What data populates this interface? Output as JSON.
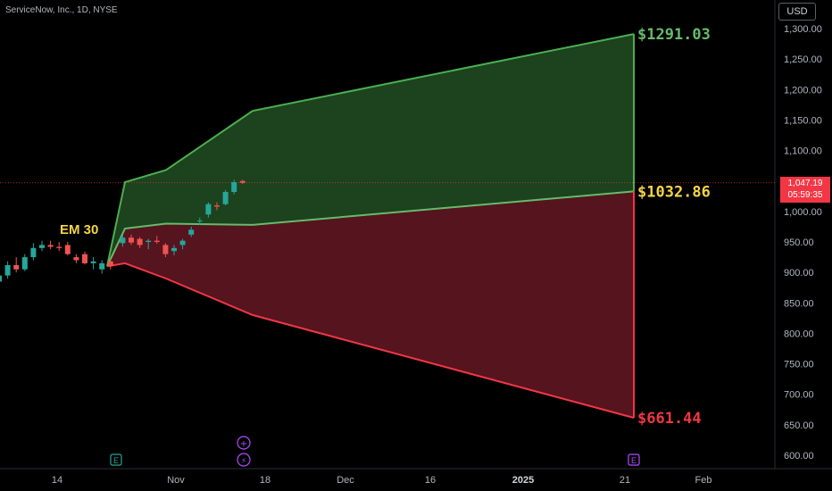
{
  "header": {
    "symbol_title": "ServiceNow, Inc., 1D, NYSE",
    "currency": "USD"
  },
  "price_tag": {
    "price": "1,047.19",
    "countdown": "05:59:35"
  },
  "colors": {
    "up": "#26a69a",
    "down": "#ef5350",
    "upper_fill": "#1e4620",
    "lower_fill": "#5a1520",
    "upper_line": "#4caf50",
    "lower_line": "#f23645",
    "mid_line": "#66bb6a",
    "upper_label": "#66bb6a",
    "mid_label": "#f5d547",
    "lower_label": "#f23645"
  },
  "chart_data": {
    "type": "candlestick",
    "title": "ServiceNow, Inc., 1D, NYSE",
    "ylim": [
      590,
      1320
    ],
    "y_ticks": [
      "1,300.00",
      "1,250.00",
      "1,200.00",
      "1,150.00",
      "1,100.00",
      "1,050.00",
      "1,000.00",
      "950.00",
      "900.00",
      "850.00",
      "800.00",
      "750.00",
      "700.00",
      "650.00",
      "600.00"
    ],
    "x_ticks": [
      "14",
      "Nov",
      "18",
      "Dec",
      "16",
      "2025",
      "21",
      "Feb"
    ],
    "annotation": "EM 30",
    "levels": {
      "upper": "$1291.03",
      "mid": "$1032.86",
      "lower": "$661.44"
    },
    "candles": [
      {
        "o": 885,
        "h": 900,
        "l": 875,
        "c": 895
      },
      {
        "o": 895,
        "h": 918,
        "l": 890,
        "c": 912
      },
      {
        "o": 912,
        "h": 925,
        "l": 900,
        "c": 905
      },
      {
        "o": 905,
        "h": 930,
        "l": 902,
        "c": 925
      },
      {
        "o": 925,
        "h": 948,
        "l": 920,
        "c": 940
      },
      {
        "o": 940,
        "h": 952,
        "l": 935,
        "c": 945
      },
      {
        "o": 945,
        "h": 952,
        "l": 938,
        "c": 942
      },
      {
        "o": 942,
        "h": 950,
        "l": 935,
        "c": 940
      },
      {
        "o": 945,
        "h": 950,
        "l": 928,
        "c": 930
      },
      {
        "o": 925,
        "h": 930,
        "l": 915,
        "c": 920
      },
      {
        "o": 930,
        "h": 934,
        "l": 913,
        "c": 915
      },
      {
        "o": 915,
        "h": 925,
        "l": 905,
        "c": 918
      },
      {
        "o": 905,
        "h": 920,
        "l": 898,
        "c": 915
      },
      {
        "o": 918,
        "h": 922,
        "l": 905,
        "c": 910
      },
      {
        "o": 948,
        "h": 962,
        "l": 942,
        "c": 957
      },
      {
        "o": 957,
        "h": 962,
        "l": 945,
        "c": 949
      },
      {
        "o": 955,
        "h": 958,
        "l": 940,
        "c": 945
      },
      {
        "o": 950,
        "h": 955,
        "l": 938,
        "c": 952
      },
      {
        "o": 952,
        "h": 960,
        "l": 947,
        "c": 950
      },
      {
        "o": 945,
        "h": 948,
        "l": 925,
        "c": 930
      },
      {
        "o": 935,
        "h": 945,
        "l": 928,
        "c": 940
      },
      {
        "o": 945,
        "h": 955,
        "l": 938,
        "c": 952
      },
      {
        "o": 962,
        "h": 975,
        "l": 958,
        "c": 970
      },
      {
        "o": 985,
        "h": 990,
        "l": 978,
        "c": 985
      },
      {
        "o": 995,
        "h": 1015,
        "l": 990,
        "c": 1012
      },
      {
        "o": 1010,
        "h": 1015,
        "l": 1002,
        "c": 1008
      },
      {
        "o": 1012,
        "h": 1035,
        "l": 1010,
        "c": 1032
      },
      {
        "o": 1032,
        "h": 1052,
        "l": 1028,
        "c": 1048
      },
      {
        "o": 1050,
        "h": 1052,
        "l": 1045,
        "c": 1047
      }
    ],
    "events": [
      "E",
      "⚡",
      "E"
    ]
  }
}
